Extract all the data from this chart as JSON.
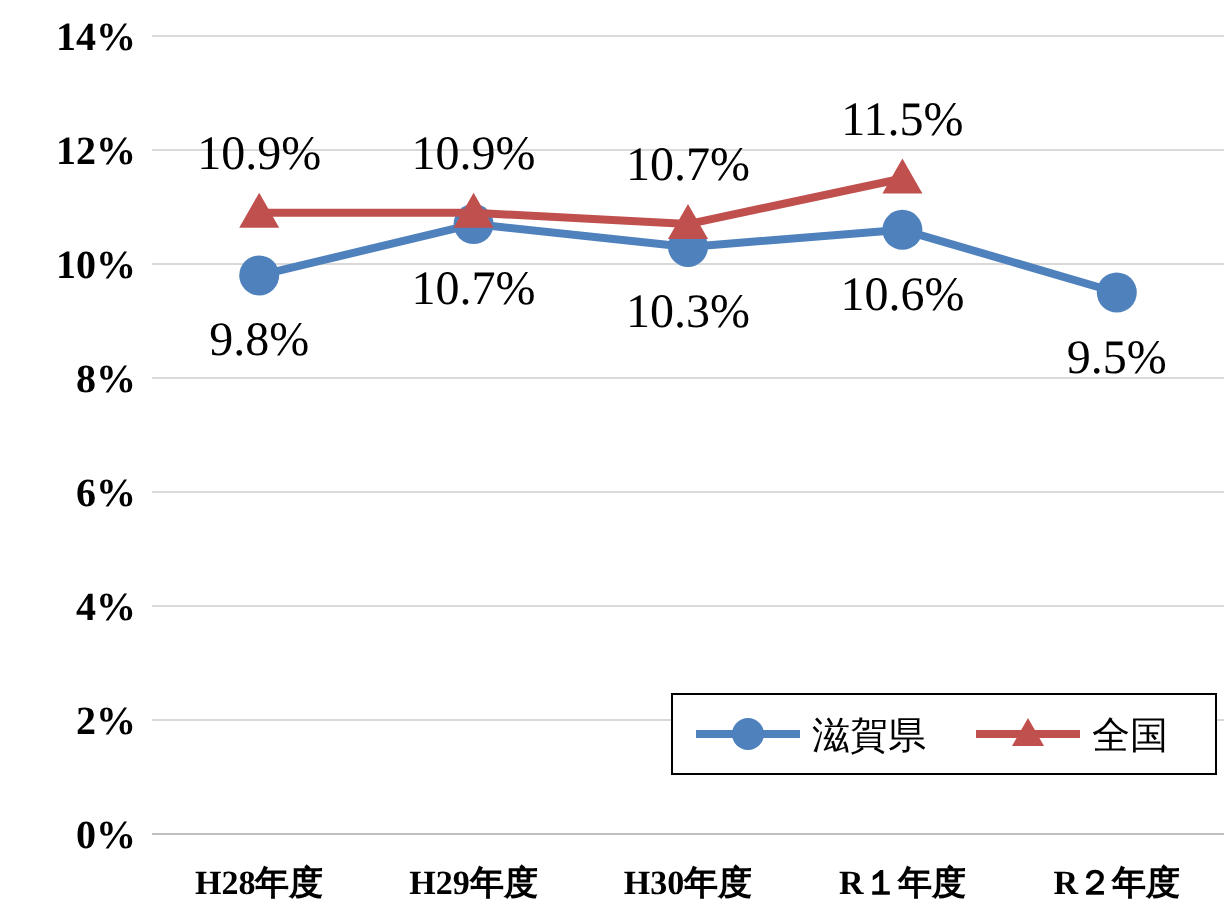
{
  "chart_data": {
    "type": "line",
    "categories": [
      "H28年度",
      "H29年度",
      "H30年度",
      "R１年度",
      "R２年度"
    ],
    "series": [
      {
        "name": "滋賀県",
        "color": "#4f81bd",
        "marker": "circle",
        "values": [
          9.8,
          10.7,
          10.3,
          10.6,
          9.5
        ],
        "value_labels": [
          "9.8%",
          "10.7%",
          "10.3%",
          "10.6%",
          "9.5%"
        ]
      },
      {
        "name": "全国",
        "color": "#c0504d",
        "marker": "triangle",
        "values": [
          10.9,
          10.9,
          10.7,
          11.5,
          null
        ],
        "value_labels": [
          "10.9%",
          "10.9%",
          "10.7%",
          "11.5%",
          null
        ]
      }
    ],
    "ylim": [
      0,
      14
    ],
    "yticks": [
      {
        "value": 0,
        "label": "0%"
      },
      {
        "value": 2,
        "label": "2%"
      },
      {
        "value": 4,
        "label": "4%"
      },
      {
        "value": 6,
        "label": "6%"
      },
      {
        "value": 8,
        "label": "8%"
      },
      {
        "value": 10,
        "label": "10%"
      },
      {
        "value": 12,
        "label": "12%"
      },
      {
        "value": 14,
        "label": "14%"
      }
    ],
    "grid": "y",
    "legend": "bottom right",
    "line_style": "solid"
  }
}
